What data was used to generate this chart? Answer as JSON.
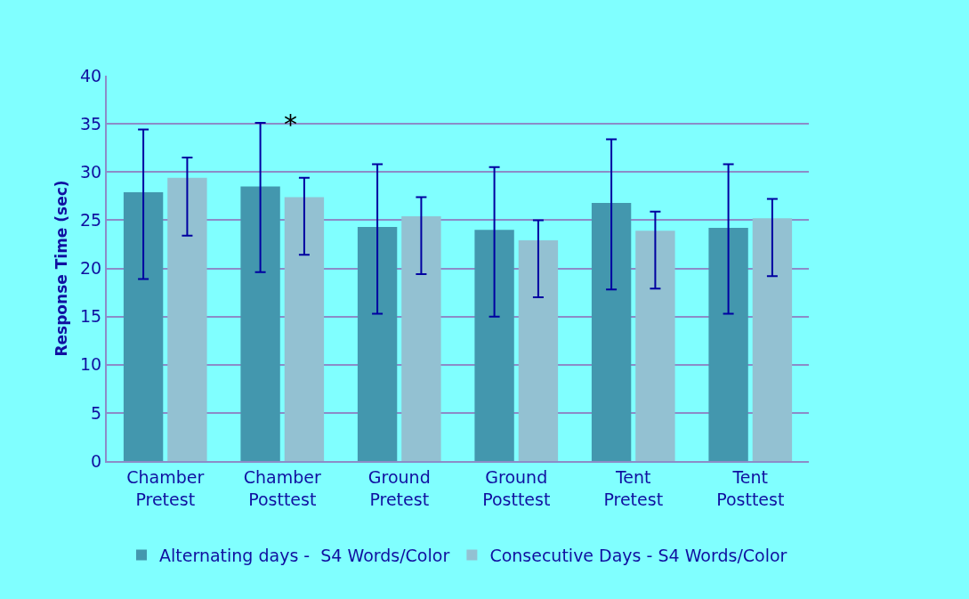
{
  "chart_data": {
    "type": "bar",
    "ylabel": "Response Time (sec)",
    "categories": [
      "Chamber Pretest",
      "Chamber Posttest",
      "Ground Pretest",
      "Ground Posttest",
      "Tent Pretest",
      "Tent Posttest"
    ],
    "series": [
      {
        "name": "Alternating days -  S4 Words/Color",
        "color": "#4397ae",
        "values": [
          27.9,
          28.5,
          24.3,
          24.0,
          26.8,
          24.2
        ],
        "errors": [
          [
            18.9,
            34.4
          ],
          [
            19.6,
            35.1
          ],
          [
            15.3,
            30.8
          ],
          [
            15.0,
            30.5
          ],
          [
            17.8,
            33.4
          ],
          [
            15.3,
            30.8
          ]
        ]
      },
      {
        "name": "Consecutive Days - S4 Words/Color",
        "color": "#93c1d2",
        "values": [
          29.4,
          27.4,
          25.4,
          22.9,
          23.9,
          25.2
        ],
        "errors": [
          [
            23.4,
            31.5
          ],
          [
            21.4,
            29.4
          ],
          [
            19.4,
            27.4
          ],
          [
            17.0,
            25.0
          ],
          [
            17.9,
            25.9
          ],
          [
            19.2,
            27.2
          ]
        ]
      }
    ],
    "annotations": [
      "*"
    ],
    "ylim": [
      0,
      40
    ],
    "yticks": [
      0,
      5,
      10,
      15,
      20,
      25,
      30,
      35,
      40
    ],
    "grid": "y",
    "legend": "bottom"
  }
}
